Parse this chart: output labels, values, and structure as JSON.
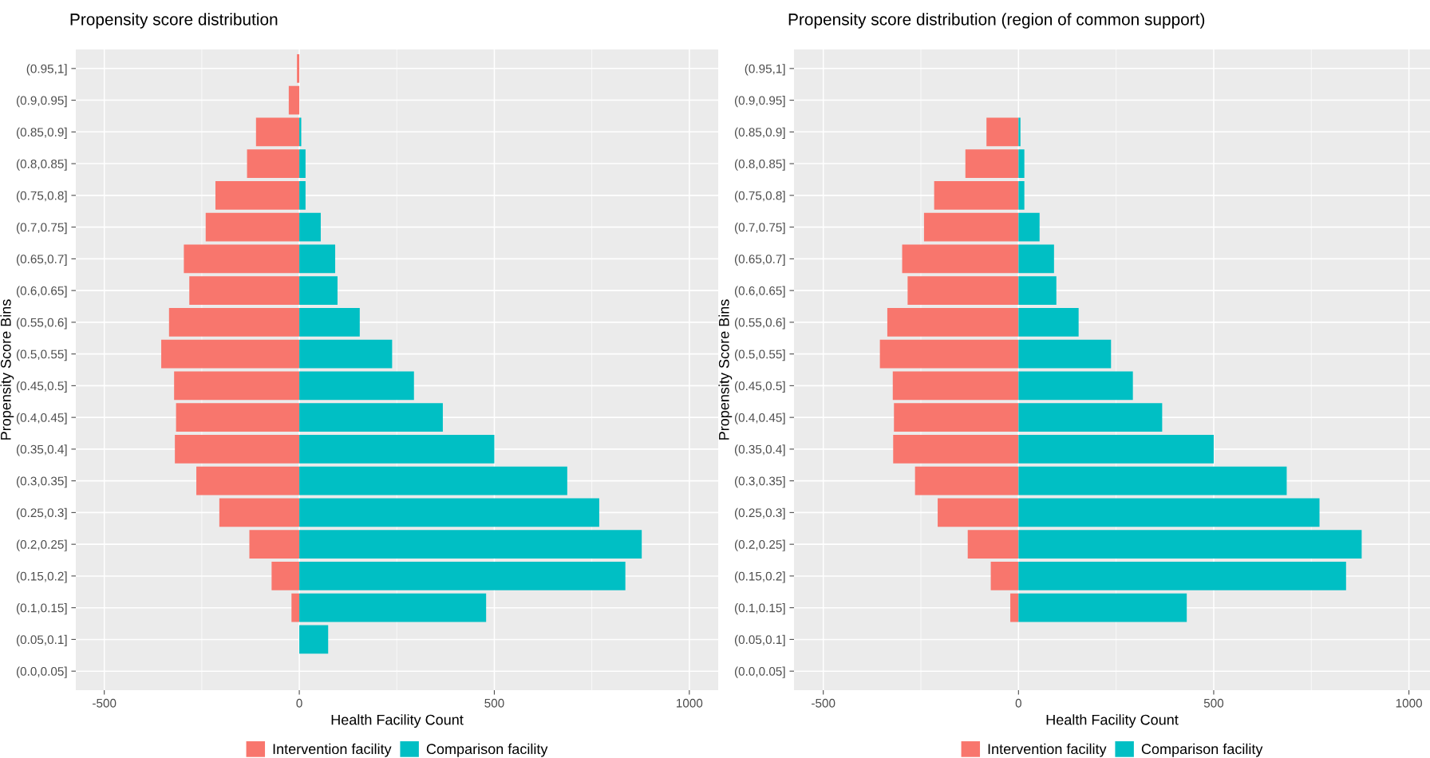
{
  "chart_data": [
    {
      "type": "bar",
      "orientation": "horizontal",
      "title": "Propensity score distribution",
      "xlabel": "Health Facility Count",
      "ylabel": "Propensity Score Bins",
      "categories": [
        "(0.95,1]",
        "(0.9,0.95]",
        "(0.85,0.9]",
        "(0.8,0.85]",
        "(0.75,0.8]",
        "(0.7,0.75]",
        "(0.65,0.7]",
        "(0.6,0.65]",
        "(0.55,0.6]",
        "(0.5,0.55]",
        "(0.45,0.5]",
        "(0.4,0.45]",
        "(0.35,0.4]",
        "(0.3,0.35]",
        "(0.25,0.3]",
        "(0.2,0.25]",
        "(0.15,0.2]",
        "(0.1,0.15]",
        "(0.05,0.1]",
        "(0.0,0.05]"
      ],
      "series": [
        {
          "name": "Intervention facility",
          "color": "#f8766d",
          "values": [
            -6,
            -27,
            -111,
            -134,
            -215,
            -240,
            -296,
            -282,
            -334,
            -354,
            -321,
            -316,
            -319,
            -264,
            -205,
            -128,
            -71,
            -20,
            0,
            0
          ]
        },
        {
          "name": "Comparison facility",
          "color": "#00bfc4",
          "values": [
            0,
            0,
            5,
            16,
            16,
            55,
            92,
            98,
            155,
            238,
            294,
            368,
            500,
            687,
            769,
            878,
            836,
            479,
            74,
            0
          ]
        }
      ],
      "xlim": [
        -573,
        1074
      ],
      "xticks": [
        -500,
        0,
        500,
        1000
      ],
      "grid": true,
      "legend": "bottom",
      "stacked": true
    },
    {
      "type": "bar",
      "orientation": "horizontal",
      "title": "Propensity score distribution (region of common support)",
      "xlabel": "Health Facility Count",
      "ylabel": "Propensity Score Bins",
      "categories": [
        "(0.95,1]",
        "(0.9,0.95]",
        "(0.85,0.9]",
        "(0.8,0.85]",
        "(0.75,0.8]",
        "(0.7,0.75]",
        "(0.65,0.7]",
        "(0.6,0.65]",
        "(0.55,0.6]",
        "(0.5,0.55]",
        "(0.45,0.5]",
        "(0.4,0.45]",
        "(0.35,0.4]",
        "(0.3,0.35]",
        "(0.25,0.3]",
        "(0.2,0.25]",
        "(0.15,0.2]",
        "(0.1,0.15]",
        "(0.05,0.1]",
        "(0.0,0.05]"
      ],
      "series": [
        {
          "name": "Intervention facility",
          "color": "#f8766d",
          "values": [
            0,
            0,
            -82,
            -136,
            -216,
            -242,
            -298,
            -284,
            -336,
            -355,
            -322,
            -319,
            -321,
            -265,
            -207,
            -130,
            -71,
            -21,
            0,
            0
          ]
        },
        {
          "name": "Comparison facility",
          "color": "#00bfc4",
          "values": [
            0,
            0,
            5,
            15,
            15,
            54,
            91,
            97,
            154,
            237,
            293,
            368,
            500,
            687,
            771,
            879,
            839,
            431,
            0,
            0
          ]
        }
      ],
      "xlim": [
        -575,
        1054
      ],
      "xticks": [
        -500,
        0,
        500,
        1000
      ],
      "grid": true,
      "legend": "bottom",
      "stacked": true
    }
  ]
}
